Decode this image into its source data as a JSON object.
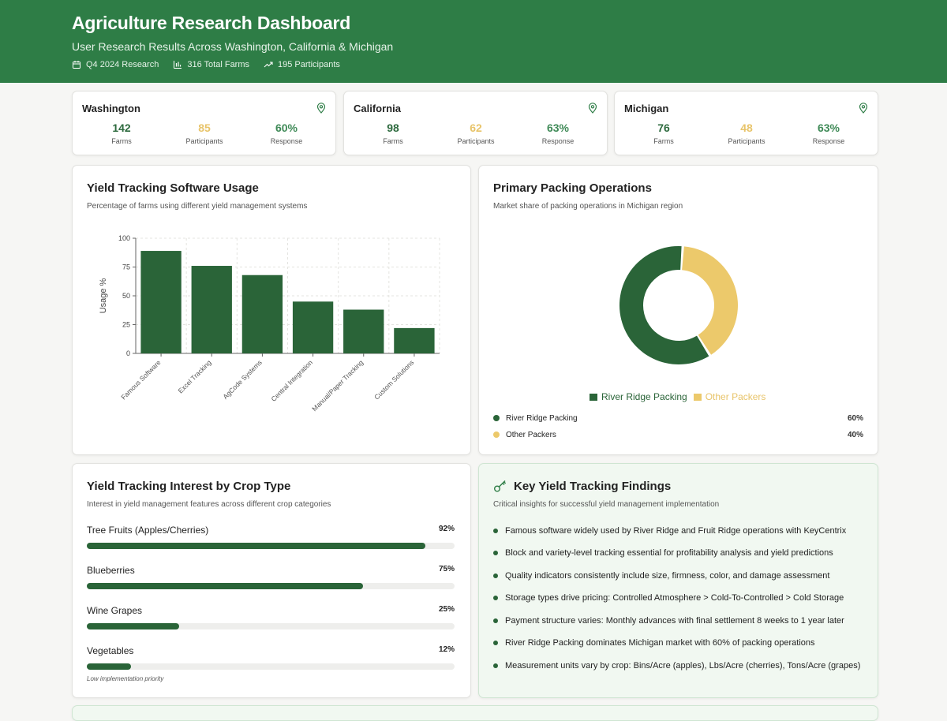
{
  "header": {
    "title": "Agriculture Research Dashboard",
    "subtitle": "User Research Results Across Washington, California & Michigan",
    "meta": [
      "Q4 2024 Research",
      "316 Total Farms",
      "195 Participants"
    ]
  },
  "regions": [
    {
      "name": "Washington",
      "farms": "142",
      "participants": "85",
      "response": "60%",
      "farms_label": "Farms",
      "participants_label": "Participants",
      "response_label": "Response"
    },
    {
      "name": "California",
      "farms": "98",
      "participants": "62",
      "response": "63%",
      "farms_label": "Farms",
      "participants_label": "Participants",
      "response_label": "Response"
    },
    {
      "name": "Michigan",
      "farms": "76",
      "participants": "48",
      "response": "63%",
      "farms_label": "Farms",
      "participants_label": "Participants",
      "response_label": "Response"
    }
  ],
  "software_card": {
    "title": "Yield Tracking Software Usage",
    "subtitle": "Percentage of farms using different yield management systems"
  },
  "packing_card": {
    "title": "Primary Packing Operations",
    "subtitle": "Market share of packing operations in Michigan region",
    "rows": [
      {
        "label": "River Ridge Packing",
        "pct": "60%"
      },
      {
        "label": "Other Packers",
        "pct": "40%"
      }
    ]
  },
  "crop_card": {
    "title": "Yield Tracking Interest by Crop Type",
    "subtitle": "Interest in yield management features across different crop categories",
    "items": [
      {
        "label": "Tree Fruits (Apples/Cherries)",
        "pct": "92%",
        "value": 92
      },
      {
        "label": "Blueberries",
        "pct": "75%",
        "value": 75
      },
      {
        "label": "Wine Grapes",
        "pct": "25%",
        "value": 25
      },
      {
        "label": "Vegetables",
        "pct": "12%",
        "value": 12
      }
    ],
    "note": "Low implementation priority"
  },
  "findings_card": {
    "title": "Key Yield Tracking Findings",
    "subtitle": "Critical insights for successful yield management implementation",
    "items": [
      "Famous software widely used by River Ridge and Fruit Ridge operations with KeyCentrix",
      "Block and variety-level tracking essential for profitability analysis and yield predictions",
      "Quality indicators consistently include size, firmness, color, and damage assessment",
      "Storage types drive pricing: Controlled Atmosphere > Cold-To-Controlled > Cold Storage",
      "Payment structure varies: Monthly advances with final settlement 8 weeks to 1 year later",
      "River Ridge Packing dominates Michigan market with 60% of packing operations",
      "Measurement units vary by crop: Bins/Acre (apples), Lbs/Acre (cherries), Tons/Acre (grapes)"
    ]
  },
  "colors": {
    "dark_green": "#2a6438",
    "gold": "#ecc96b",
    "header_green": "#2e7d46"
  },
  "chart_data": [
    {
      "type": "bar",
      "title": "Yield Tracking Software Usage",
      "categories": [
        "Famous Software",
        "Excel Tracking",
        "AgCode Systems",
        "Central Integration",
        "Manual/Paper Tracking",
        "Custom Solutions"
      ],
      "values": [
        89,
        76,
        68,
        45,
        38,
        22
      ],
      "xlabel": "",
      "ylabel": "Usage %",
      "ylim": [
        0,
        100
      ],
      "yticks": [
        "0",
        "25",
        "50",
        "75",
        "100"
      ],
      "grid": true
    },
    {
      "type": "pie",
      "title": "Primary Packing Operations",
      "labels": [
        "River Ridge Packing",
        "Other Packers"
      ],
      "values": [
        60,
        40
      ],
      "colors": [
        "#2a6438",
        "#ecc96b"
      ],
      "legend": "bottom"
    }
  ]
}
